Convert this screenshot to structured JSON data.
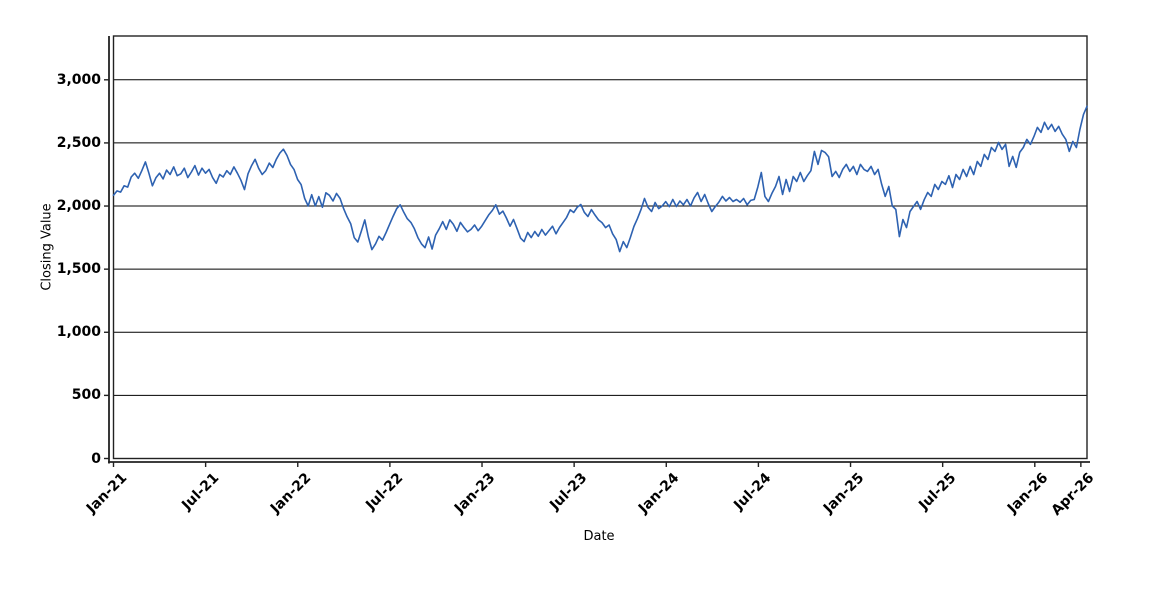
{
  "chart_data": {
    "type": "line",
    "xlabel": "Date",
    "ylabel": "Closing Value",
    "legend": "none",
    "grid": "horizontal-black",
    "background": "#ffffff",
    "series_color": "#2e62b1",
    "axis_color": "#222222",
    "ylim": [
      0,
      3347
    ],
    "xlim_months": [
      0,
      63.4
    ],
    "x_unit": "weekly samples, Jan-2021 to mid-Apr-2026",
    "y_ticks": [
      {
        "label": "0",
        "v": 0
      },
      {
        "label": "500",
        "v": 500
      },
      {
        "label": "1,000",
        "v": 1000
      },
      {
        "label": "1,500",
        "v": 1500
      },
      {
        "label": "2,000",
        "v": 2000
      },
      {
        "label": "2,500",
        "v": 2500
      },
      {
        "label": "3,000",
        "v": 3000
      }
    ],
    "x_ticks": [
      {
        "label": "Jan-21",
        "m": 0
      },
      {
        "label": "Jul-21",
        "m": 6
      },
      {
        "label": "Jan-22",
        "m": 12
      },
      {
        "label": "Jul-22",
        "m": 18
      },
      {
        "label": "Jan-23",
        "m": 24
      },
      {
        "label": "Jul-23",
        "m": 30
      },
      {
        "label": "Jan-24",
        "m": 36
      },
      {
        "label": "Jul-24",
        "m": 42
      },
      {
        "label": "Jan-25",
        "m": 48
      },
      {
        "label": "Jul-25",
        "m": 54
      },
      {
        "label": "Jan-26",
        "m": 60
      },
      {
        "label": "Apr-26",
        "m": 63
      }
    ],
    "values": [
      2085,
      2120,
      2110,
      2160,
      2150,
      2230,
      2260,
      2220,
      2280,
      2350,
      2260,
      2160,
      2225,
      2260,
      2215,
      2285,
      2250,
      2310,
      2240,
      2255,
      2300,
      2225,
      2270,
      2320,
      2245,
      2300,
      2260,
      2290,
      2225,
      2180,
      2250,
      2230,
      2280,
      2250,
      2310,
      2260,
      2205,
      2130,
      2255,
      2320,
      2370,
      2300,
      2250,
      2280,
      2340,
      2305,
      2370,
      2420,
      2450,
      2400,
      2330,
      2290,
      2210,
      2170,
      2060,
      2000,
      2090,
      2000,
      2075,
      1990,
      2105,
      2085,
      2040,
      2100,
      2060,
      1980,
      1915,
      1860,
      1750,
      1715,
      1800,
      1890,
      1755,
      1655,
      1700,
      1760,
      1730,
      1790,
      1855,
      1920,
      1980,
      2010,
      1950,
      1900,
      1870,
      1820,
      1750,
      1700,
      1670,
      1755,
      1660,
      1770,
      1820,
      1877,
      1815,
      1890,
      1855,
      1800,
      1870,
      1830,
      1795,
      1815,
      1850,
      1805,
      1840,
      1885,
      1930,
      1965,
      2010,
      1935,
      1960,
      1905,
      1840,
      1893,
      1820,
      1745,
      1718,
      1790,
      1750,
      1798,
      1760,
      1814,
      1770,
      1805,
      1840,
      1780,
      1830,
      1870,
      1910,
      1970,
      1949,
      1990,
      2012,
      1950,
      1917,
      1972,
      1930,
      1890,
      1869,
      1829,
      1850,
      1780,
      1734,
      1639,
      1718,
      1671,
      1750,
      1838,
      1900,
      1972,
      2060,
      1990,
      1957,
      2028,
      1980,
      2000,
      2035,
      1995,
      2052,
      1996,
      2040,
      2010,
      2052,
      2000,
      2065,
      2107,
      2036,
      2091,
      2020,
      1957,
      1996,
      2030,
      2076,
      2040,
      2068,
      2036,
      2052,
      2030,
      2060,
      2010,
      2045,
      2052,
      2150,
      2266,
      2076,
      2036,
      2100,
      2155,
      2234,
      2091,
      2210,
      2115,
      2234,
      2194,
      2266,
      2194,
      2240,
      2280,
      2433,
      2330,
      2441,
      2425,
      2390,
      2234,
      2274,
      2226,
      2290,
      2330,
      2274,
      2314,
      2250,
      2330,
      2290,
      2274,
      2314,
      2250,
      2290,
      2171,
      2076,
      2155,
      2000,
      1973,
      1758,
      1893,
      1829,
      1957,
      1996,
      2036,
      1973,
      2050,
      2107,
      2076,
      2171,
      2131,
      2194,
      2171,
      2240,
      2147,
      2250,
      2210,
      2290,
      2234,
      2314,
      2250,
      2353,
      2314,
      2409,
      2369,
      2464,
      2433,
      2504,
      2449,
      2488,
      2314,
      2393,
      2306,
      2425,
      2464,
      2528,
      2488,
      2550,
      2623,
      2583,
      2663,
      2607,
      2647,
      2591,
      2631,
      2570,
      2528,
      2433,
      2512,
      2464,
      2607,
      2726,
      2790
    ]
  }
}
